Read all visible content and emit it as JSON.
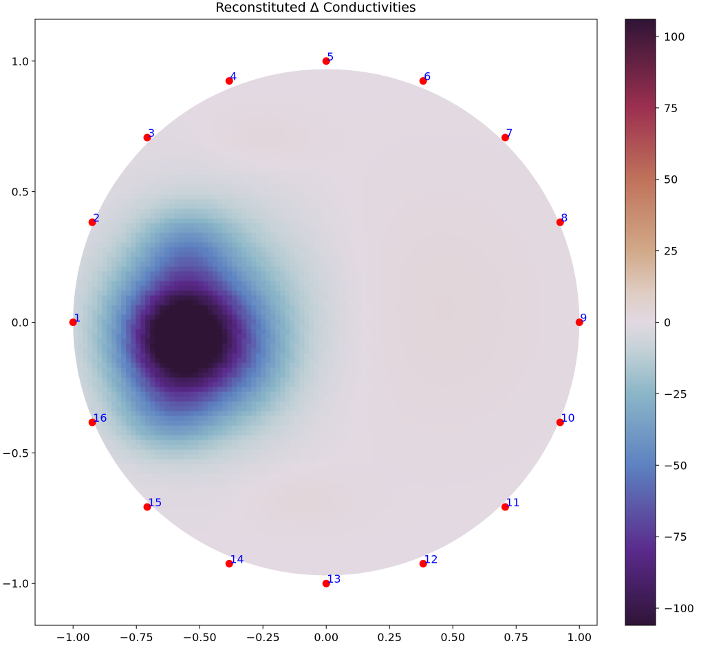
{
  "chart_data": {
    "type": "heatmap",
    "title": "Reconstituted Δ Conductivities",
    "xlabel": "",
    "ylabel": "",
    "xlim": [
      -1.15,
      1.07
    ],
    "ylim": [
      -1.16,
      1.16
    ],
    "xticks": [
      -1.0,
      -0.75,
      -0.5,
      -0.25,
      0.0,
      0.25,
      0.5,
      0.75,
      1.0
    ],
    "xtick_labels": [
      "−1.00",
      "−0.75",
      "−0.50",
      "−0.25",
      "0.00",
      "0.25",
      "0.50",
      "0.75",
      "1.00"
    ],
    "yticks": [
      1.0,
      0.5,
      0.0,
      -0.5,
      -1.0
    ],
    "ytick_labels": [
      "1.0",
      "0.5",
      "0.0",
      "−0.5",
      "−1.0"
    ],
    "domain": {
      "shape": "circle",
      "center": [
        0,
        0
      ],
      "radius": 1.0
    },
    "field": {
      "background_value": 0,
      "blobs": [
        {
          "x": -0.57,
          "y": -0.07,
          "sx": 0.16,
          "sy": 0.17,
          "value": -105
        },
        {
          "x": -0.48,
          "y": 0.02,
          "sx": 0.26,
          "sy": 0.26,
          "value": -35
        },
        {
          "x": -0.55,
          "y": 0.3,
          "sx": 0.12,
          "sy": 0.1,
          "value": -22
        },
        {
          "x": -0.62,
          "y": -0.38,
          "sx": 0.14,
          "sy": 0.1,
          "value": -20
        },
        {
          "x": -0.3,
          "y": -0.15,
          "sx": 0.12,
          "sy": 0.16,
          "value": -15
        },
        {
          "x": 0.45,
          "y": 0.05,
          "sx": 0.3,
          "sy": 0.35,
          "value": 3
        },
        {
          "x": -0.25,
          "y": 0.72,
          "sx": 0.15,
          "sy": 0.08,
          "value": 3
        },
        {
          "x": -0.1,
          "y": -0.7,
          "sx": 0.15,
          "sy": 0.08,
          "value": 3
        }
      ]
    },
    "colorbar": {
      "colormap": "twilight_shifted",
      "vmin": -106,
      "vmax": 106,
      "ticks": [
        100,
        75,
        50,
        25,
        0,
        -25,
        -50,
        -75,
        -100
      ],
      "tick_labels": [
        "100",
        "75",
        "50",
        "25",
        "0",
        "−25",
        "−50",
        "−75",
        "−100"
      ],
      "stops": [
        {
          "v": -106,
          "color": "#2f1436"
        },
        {
          "v": -80,
          "color": "#5a2a8c"
        },
        {
          "v": -50,
          "color": "#5d82c1"
        },
        {
          "v": -25,
          "color": "#8bb6c8"
        },
        {
          "v": -10,
          "color": "#c2d1d6"
        },
        {
          "v": 0,
          "color": "#e2d9e2"
        },
        {
          "v": 10,
          "color": "#dfcdc4"
        },
        {
          "v": 25,
          "color": "#d1a988"
        },
        {
          "v": 50,
          "color": "#c0725a"
        },
        {
          "v": 75,
          "color": "#9c3050"
        },
        {
          "v": 106,
          "color": "#2f1436"
        }
      ]
    },
    "electrodes": {
      "color": "#ff0000",
      "label_color": "#0000ff",
      "points": [
        {
          "label": "1",
          "x": -1.0,
          "y": 0.0
        },
        {
          "label": "2",
          "x": -0.924,
          "y": 0.383
        },
        {
          "label": "3",
          "x": -0.707,
          "y": 0.707
        },
        {
          "label": "4",
          "x": -0.383,
          "y": 0.924
        },
        {
          "label": "5",
          "x": 0.0,
          "y": 1.0
        },
        {
          "label": "6",
          "x": 0.383,
          "y": 0.924
        },
        {
          "label": "7",
          "x": 0.707,
          "y": 0.707
        },
        {
          "label": "8",
          "x": 0.924,
          "y": 0.383
        },
        {
          "label": "9",
          "x": 1.0,
          "y": 0.0
        },
        {
          "label": "10",
          "x": 0.924,
          "y": -0.383
        },
        {
          "label": "11",
          "x": 0.707,
          "y": -0.707
        },
        {
          "label": "12",
          "x": 0.383,
          "y": -0.924
        },
        {
          "label": "13",
          "x": 0.0,
          "y": -1.0
        },
        {
          "label": "14",
          "x": -0.383,
          "y": -0.924
        },
        {
          "label": "15",
          "x": -0.707,
          "y": -0.707
        },
        {
          "label": "16",
          "x": -0.924,
          "y": -0.383
        }
      ]
    },
    "grid": false,
    "legend": "none"
  }
}
